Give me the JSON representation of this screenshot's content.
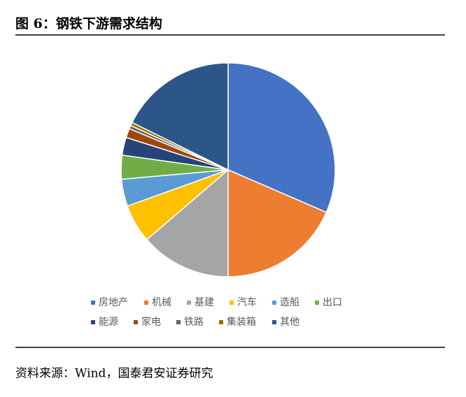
{
  "chart_data": {
    "type": "pie",
    "title": "图 6：钢铁下游需求结构",
    "source": "资料来源：Wind，国泰君安证券研究",
    "categories": [
      "房地产",
      "机械",
      "基建",
      "汽车",
      "造船",
      "出口",
      "能源",
      "家电",
      "铁路",
      "集装箱",
      "其他"
    ],
    "values": [
      31.5,
      18.5,
      13.7,
      5.8,
      4.1,
      3.6,
      2.7,
      1.4,
      0.5,
      0.5,
      17.7
    ],
    "colors": [
      "#4472c4",
      "#ed7d31",
      "#a5a5a5",
      "#ffc000",
      "#5b9bd5",
      "#70ad47",
      "#264478",
      "#9e480e",
      "#636363",
      "#997300",
      "#2c5687"
    ],
    "legend": "bottom"
  }
}
